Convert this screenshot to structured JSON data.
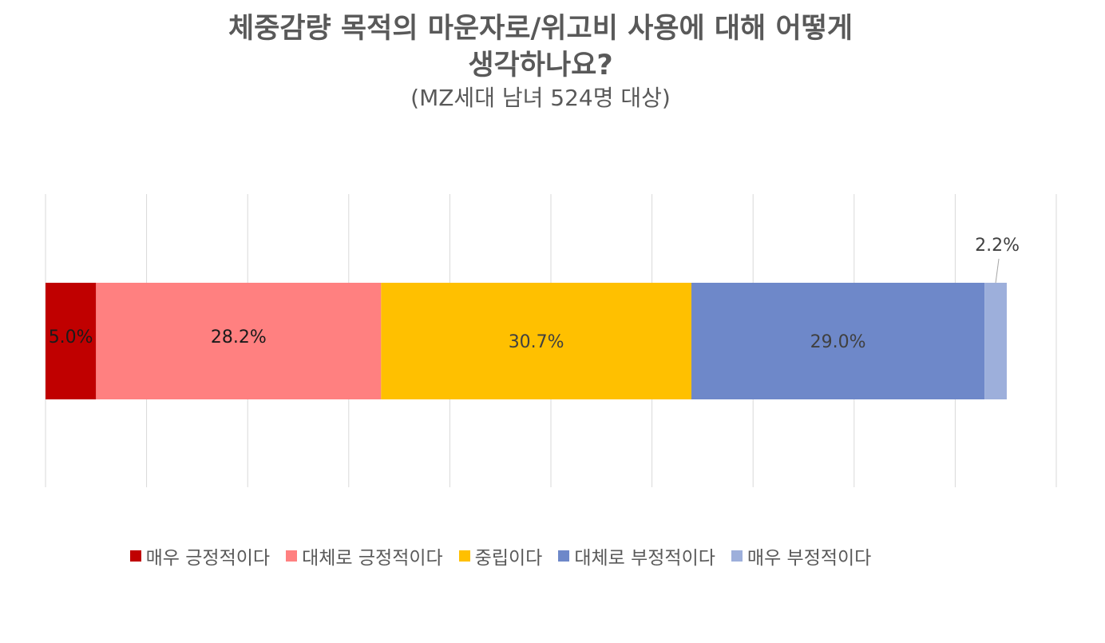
{
  "title": {
    "line1": "체중감량 목적의 마운자로/위고비 사용에 대해 어떻게",
    "line2": "생각하나요?",
    "subtitle": "(MZ세대 남녀 524명 대상)"
  },
  "chart_data": {
    "type": "bar",
    "orientation": "horizontal",
    "stacked": true,
    "xlim": [
      0,
      100
    ],
    "grid": true,
    "legend_position": "bottom",
    "series": [
      {
        "name": "매우 긍정적이다",
        "value": 5.0,
        "label": "5.0%",
        "color": "#C00000",
        "label_color": "#1a1a1a"
      },
      {
        "name": "대체로 긍정적이다",
        "value": 28.2,
        "label": "28.2%",
        "color": "#FF8080",
        "label_color": "#1a1a1a"
      },
      {
        "name": "중립이다",
        "value": 30.7,
        "label": "30.7%",
        "color": "#FFC000",
        "label_color": "#404040"
      },
      {
        "name": "대체로 부정적이다",
        "value": 29.0,
        "label": "29.0%",
        "color": "#6E88C9",
        "label_color": "#404040"
      },
      {
        "name": "매우 부정적이다",
        "value": 2.2,
        "label": "2.2%",
        "color": "#9DAFDB",
        "label_color": "#404040"
      }
    ]
  }
}
